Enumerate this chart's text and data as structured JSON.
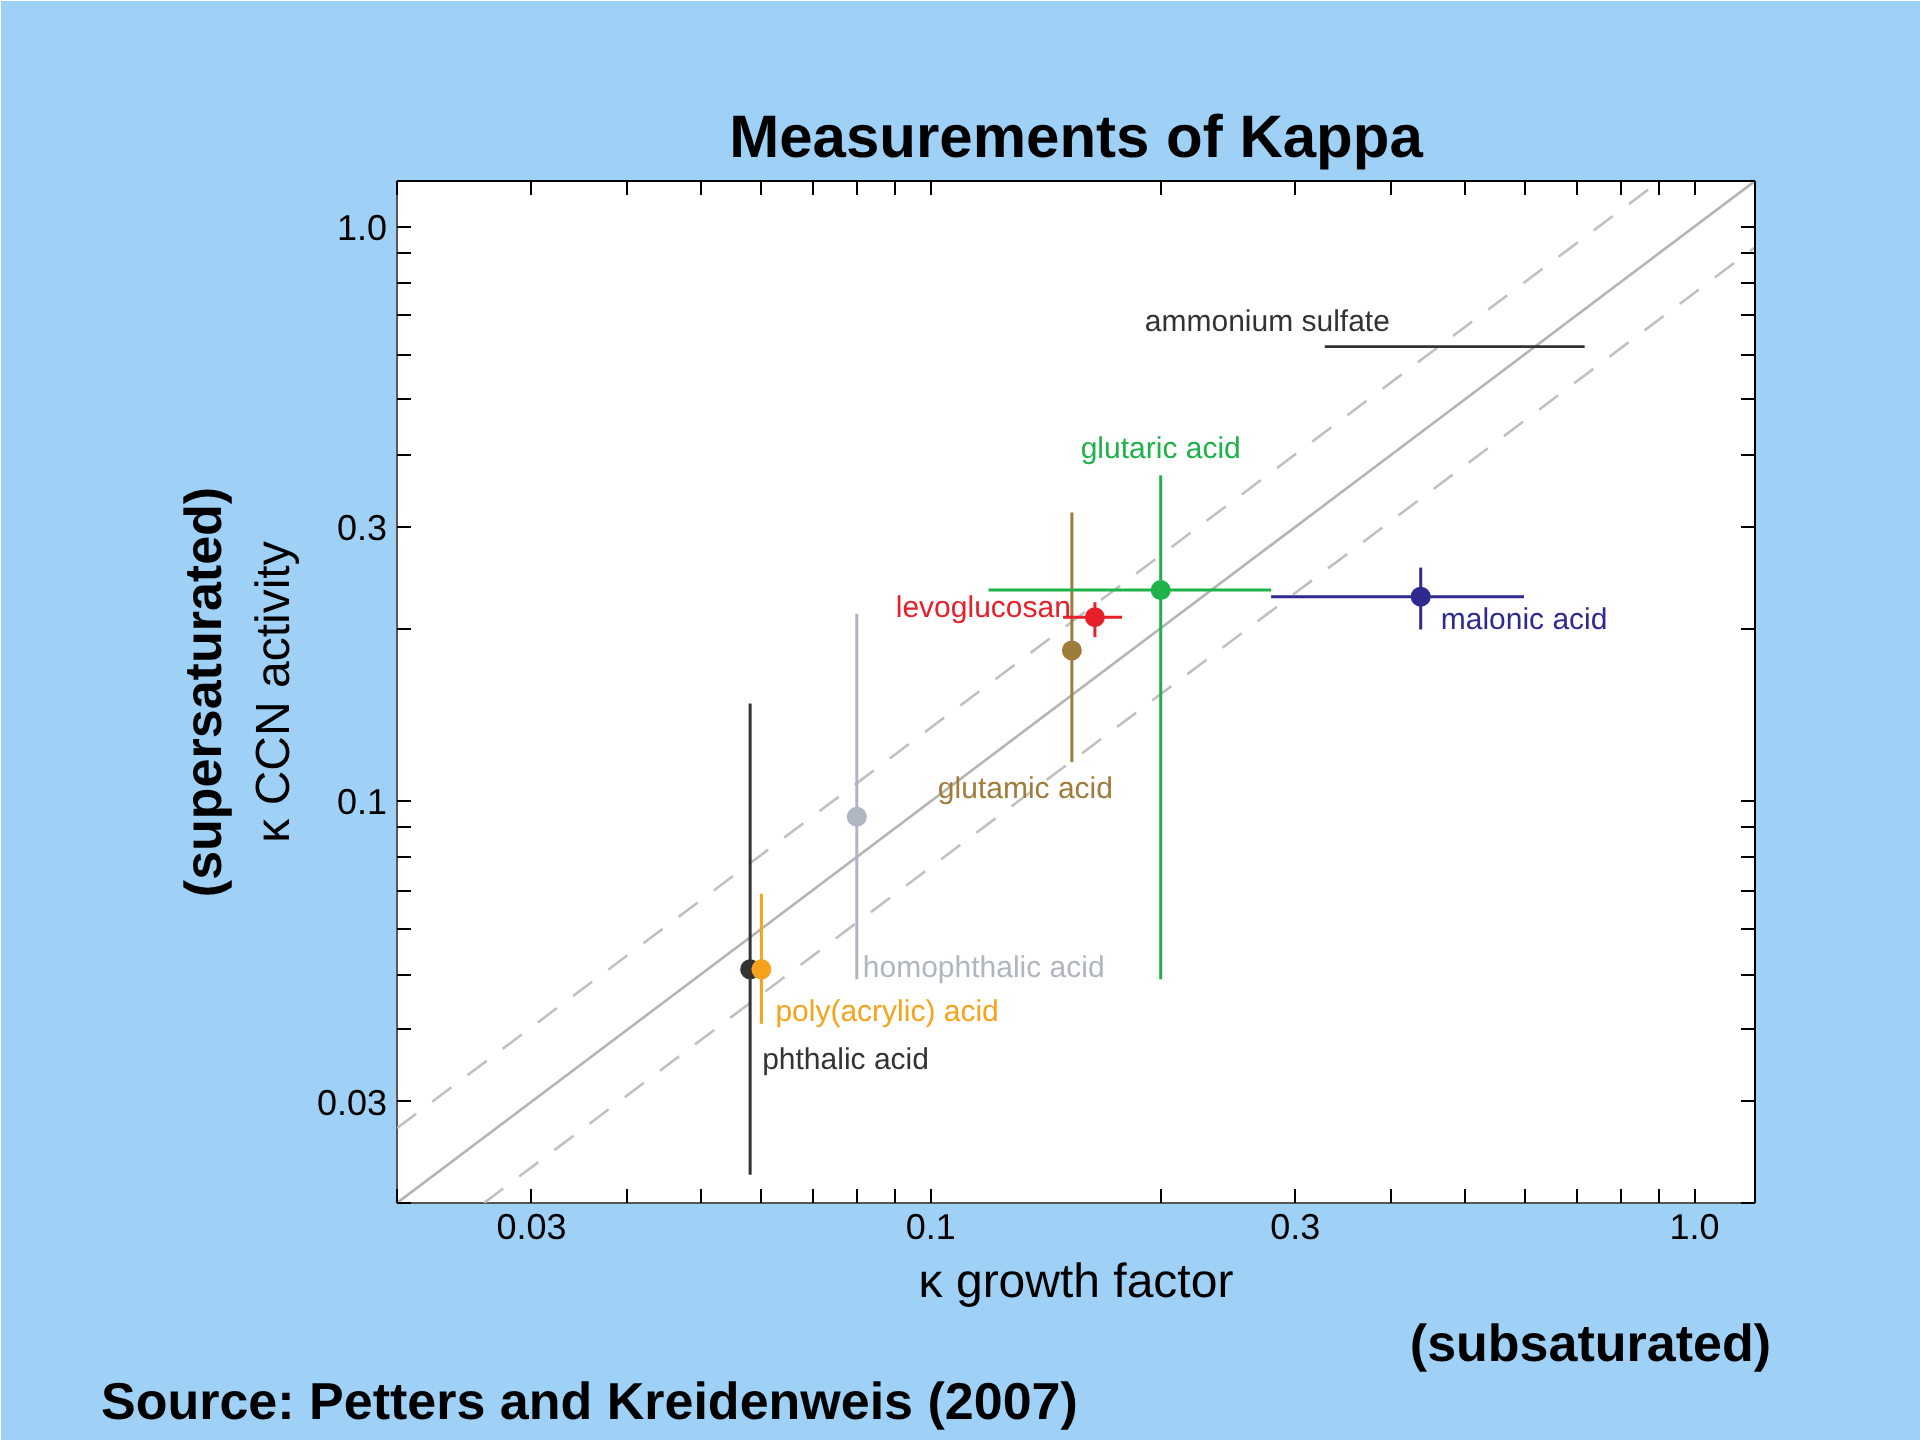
{
  "chart_data": {
    "type": "scatter",
    "title": "Measurements of Kappa",
    "xlabel": "κ growth factor",
    "ylabel": "κ CCN activity",
    "annotations": [
      "(supersaturated)",
      "(subsaturated)",
      "Source:  Petters and Kreidenweis (2007)"
    ],
    "log": "xy",
    "grid": false,
    "xlim": [
      0.02,
      1.2
    ],
    "ylim": [
      0.02,
      1.2
    ],
    "xticks": [
      {
        "value": 0.02,
        "label": null
      },
      0.03,
      {
        "value": 0.04,
        "label": null
      },
      {
        "value": 0.05,
        "label": null
      },
      {
        "value": 0.06,
        "label": null
      },
      {
        "value": 0.07,
        "label": null
      },
      {
        "value": 0.08,
        "label": null
      },
      {
        "value": 0.09,
        "label": null
      },
      0.1,
      {
        "value": 0.2,
        "label": null
      },
      0.3,
      {
        "value": 0.4,
        "label": null
      },
      {
        "value": 0.5,
        "label": null
      },
      {
        "value": 0.6,
        "label": null
      },
      {
        "value": 0.7,
        "label": null
      },
      {
        "value": 0.8,
        "label": null
      },
      {
        "value": 0.9,
        "label": null
      },
      {
        "value": 1.0,
        "label": "1.0"
      }
    ],
    "yticks": [
      {
        "value": 0.02,
        "label": null
      },
      0.03,
      {
        "value": 0.04,
        "label": null
      },
      {
        "value": 0.05,
        "label": null
      },
      {
        "value": 0.06,
        "label": null
      },
      {
        "value": 0.07,
        "label": null
      },
      {
        "value": 0.08,
        "label": null
      },
      {
        "value": 0.09,
        "label": null
      },
      0.1,
      {
        "value": 0.2,
        "label": null
      },
      0.3,
      {
        "value": 0.4,
        "label": null
      },
      {
        "value": 0.5,
        "label": null
      },
      {
        "value": 0.6,
        "label": null
      },
      {
        "value": 0.7,
        "label": null
      },
      {
        "value": 0.8,
        "label": null
      },
      {
        "value": 0.9,
        "label": null
      },
      {
        "value": 1.0,
        "label": "1.0"
      }
    ],
    "series": [
      {
        "type": "line",
        "color": "#b4b4b4",
        "line_style": "solid",
        "x": [
          0.02,
          1.2
        ],
        "values": [
          0.02,
          1.2
        ]
      },
      {
        "type": "line",
        "color": "#c0c0c0",
        "line_style": "dashed",
        "x": [
          0.02,
          0.9
        ],
        "values": [
          0.027,
          1.2
        ]
      },
      {
        "type": "line",
        "color": "#c0c0c0",
        "line_style": "dashed",
        "x": [
          0.026,
          1.2
        ],
        "values": [
          0.02,
          0.92
        ]
      },
      {
        "name": "phthalic acid",
        "marker": "circle",
        "color": "#333333",
        "x": [
          0.058
        ],
        "values": [
          0.051
        ],
        "errors": [
          [
            0.0224,
            0.148
          ]
        ]
      },
      {
        "name": "poly(acrylic) acid",
        "marker": "circle",
        "color": "#f7a21b",
        "x": [
          0.06
        ],
        "values": [
          0.051
        ],
        "errors": [
          [
            0.041,
            0.069
          ]
        ]
      },
      {
        "name": "homophthalic acid",
        "marker": "circle",
        "color": "#b0b5c2",
        "x": [
          0.08
        ],
        "values": [
          0.094
        ],
        "errors": [
          [
            0.049,
            0.212
          ]
        ]
      },
      {
        "name": "glutamic acid",
        "marker": "circle",
        "color": "#a07c3a",
        "x": [
          0.153
        ],
        "values": [
          0.183
        ],
        "errors": [
          [
            0.117,
            0.318
          ]
        ]
      },
      {
        "name": "levoglucosan",
        "marker": "circle",
        "color": "#e8202a",
        "x": [
          0.164
        ],
        "values": [
          0.209
        ],
        "errors": [
          [
            0.193,
            0.222
          ]
        ],
        "xerrors": [
          [
            0.149,
            0.178
          ]
        ]
      },
      {
        "name": "glutaric acid",
        "marker": "circle",
        "color": "#1fb24a",
        "x": [
          0.2
        ],
        "values": [
          0.233
        ],
        "errors": [
          [
            0.049,
            0.369
          ]
        ],
        "xerrors": [
          [
            0.119,
            0.279
          ]
        ]
      },
      {
        "name": "malonic acid",
        "marker": "circle",
        "color": "#2e2a8f",
        "x": [
          0.438
        ],
        "values": [
          0.227
        ],
        "errors": [
          [
            0.199,
            0.255
          ]
        ],
        "xerrors": [
          [
            0.279,
            0.598
          ]
        ]
      },
      {
        "name": "ammonium sulfate",
        "type": "line",
        "color": "#333333",
        "line_style": "solid",
        "x": [
          0.328,
          0.718
        ],
        "values": [
          0.618,
          0.618
        ]
      }
    ]
  }
}
